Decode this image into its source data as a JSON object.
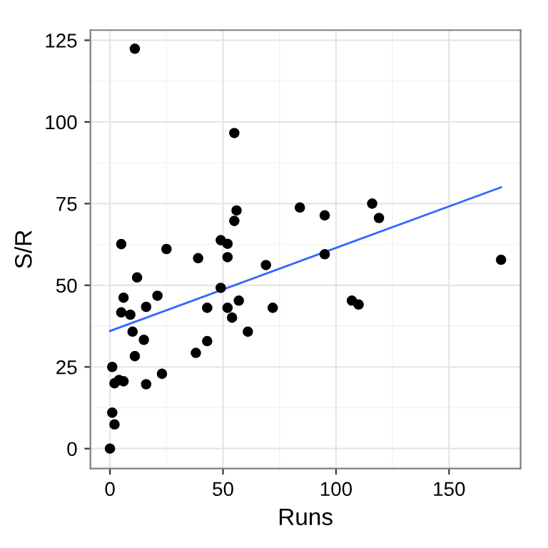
{
  "chart_data": {
    "type": "scatter",
    "xlabel": "Runs",
    "ylabel": "S/R",
    "xlim": [
      -8.65,
      181.65
    ],
    "ylim": [
      -6.1,
      128.1
    ],
    "xticks": [
      0,
      50,
      100,
      150
    ],
    "yticks": [
      0,
      25,
      50,
      75,
      100,
      125
    ],
    "grid": true,
    "series": [
      {
        "marker": "circle",
        "color": "#000000",
        "x": [
          0,
          1,
          2,
          1,
          2,
          4,
          6,
          10,
          11,
          15,
          16,
          23,
          5,
          6,
          9,
          12,
          16,
          21,
          38,
          39,
          43,
          43,
          49,
          52,
          54,
          57,
          61,
          52,
          69,
          72,
          11,
          55,
          56,
          55,
          5,
          25,
          49,
          52,
          84,
          95,
          95,
          116,
          119,
          107,
          110,
          173
        ],
        "values": [
          0,
          11,
          7.4,
          25,
          20,
          21,
          20.6,
          35.8,
          28.3,
          33.3,
          19.7,
          22.9,
          41.7,
          46.2,
          41,
          52.4,
          43.4,
          46.8,
          29.3,
          58.3,
          32.9,
          43.1,
          49.2,
          43.1,
          40.1,
          45.3,
          35.8,
          58.6,
          56.2,
          43.1,
          122.4,
          96.6,
          72.9,
          69.7,
          62.6,
          61.1,
          63.8,
          62.7,
          73.8,
          71.4,
          59.5,
          75,
          70.6,
          45.3,
          44.1,
          57.8
        ]
      },
      {
        "type": "line",
        "marker": "none",
        "color": "#3366ff",
        "x": [
          0,
          173
        ],
        "values": [
          36,
          80
        ]
      }
    ]
  }
}
